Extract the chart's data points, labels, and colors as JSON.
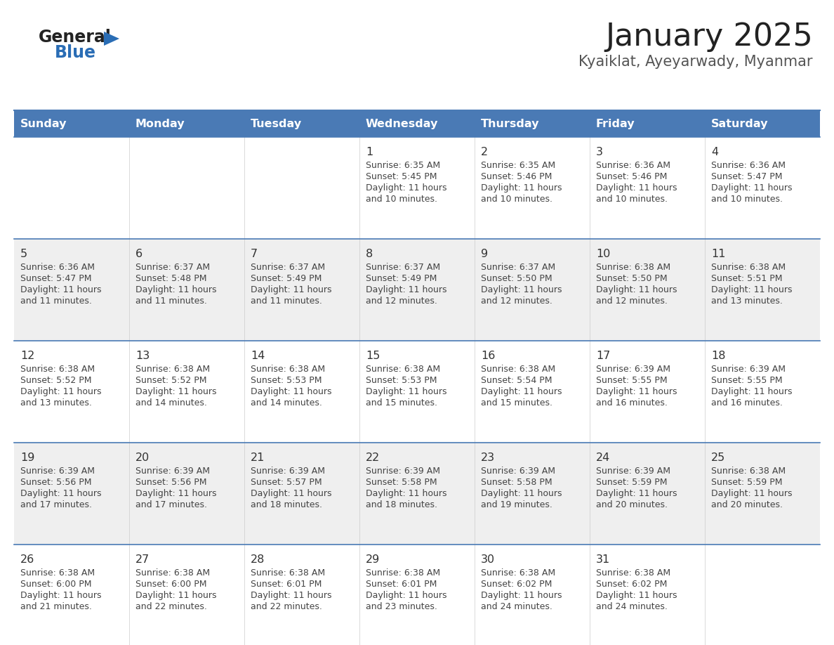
{
  "title": "January 2025",
  "subtitle": "Kyaiklat, Ayeyarwady, Myanmar",
  "days_of_week": [
    "Sunday",
    "Monday",
    "Tuesday",
    "Wednesday",
    "Thursday",
    "Friday",
    "Saturday"
  ],
  "header_bg": "#4a7ab5",
  "header_text": "#ffffff",
  "row_bg_white": "#ffffff",
  "row_bg_gray": "#efefef",
  "border_color": "#4a7ab5",
  "day_number_color": "#333333",
  "text_color": "#444444",
  "title_color": "#222222",
  "subtitle_color": "#555555",
  "logo_general_color": "#222222",
  "logo_blue_color": "#2a6db5",
  "calendar": [
    [
      null,
      null,
      null,
      {
        "day": 1,
        "sunrise": "6:35 AM",
        "sunset": "5:45 PM",
        "dl1": "Daylight: 11 hours",
        "dl2": "and 10 minutes."
      },
      {
        "day": 2,
        "sunrise": "6:35 AM",
        "sunset": "5:46 PM",
        "dl1": "Daylight: 11 hours",
        "dl2": "and 10 minutes."
      },
      {
        "day": 3,
        "sunrise": "6:36 AM",
        "sunset": "5:46 PM",
        "dl1": "Daylight: 11 hours",
        "dl2": "and 10 minutes."
      },
      {
        "day": 4,
        "sunrise": "6:36 AM",
        "sunset": "5:47 PM",
        "dl1": "Daylight: 11 hours",
        "dl2": "and 10 minutes."
      }
    ],
    [
      {
        "day": 5,
        "sunrise": "6:36 AM",
        "sunset": "5:47 PM",
        "dl1": "Daylight: 11 hours",
        "dl2": "and 11 minutes."
      },
      {
        "day": 6,
        "sunrise": "6:37 AM",
        "sunset": "5:48 PM",
        "dl1": "Daylight: 11 hours",
        "dl2": "and 11 minutes."
      },
      {
        "day": 7,
        "sunrise": "6:37 AM",
        "sunset": "5:49 PM",
        "dl1": "Daylight: 11 hours",
        "dl2": "and 11 minutes."
      },
      {
        "day": 8,
        "sunrise": "6:37 AM",
        "sunset": "5:49 PM",
        "dl1": "Daylight: 11 hours",
        "dl2": "and 12 minutes."
      },
      {
        "day": 9,
        "sunrise": "6:37 AM",
        "sunset": "5:50 PM",
        "dl1": "Daylight: 11 hours",
        "dl2": "and 12 minutes."
      },
      {
        "day": 10,
        "sunrise": "6:38 AM",
        "sunset": "5:50 PM",
        "dl1": "Daylight: 11 hours",
        "dl2": "and 12 minutes."
      },
      {
        "day": 11,
        "sunrise": "6:38 AM",
        "sunset": "5:51 PM",
        "dl1": "Daylight: 11 hours",
        "dl2": "and 13 minutes."
      }
    ],
    [
      {
        "day": 12,
        "sunrise": "6:38 AM",
        "sunset": "5:52 PM",
        "dl1": "Daylight: 11 hours",
        "dl2": "and 13 minutes."
      },
      {
        "day": 13,
        "sunrise": "6:38 AM",
        "sunset": "5:52 PM",
        "dl1": "Daylight: 11 hours",
        "dl2": "and 14 minutes."
      },
      {
        "day": 14,
        "sunrise": "6:38 AM",
        "sunset": "5:53 PM",
        "dl1": "Daylight: 11 hours",
        "dl2": "and 14 minutes."
      },
      {
        "day": 15,
        "sunrise": "6:38 AM",
        "sunset": "5:53 PM",
        "dl1": "Daylight: 11 hours",
        "dl2": "and 15 minutes."
      },
      {
        "day": 16,
        "sunrise": "6:38 AM",
        "sunset": "5:54 PM",
        "dl1": "Daylight: 11 hours",
        "dl2": "and 15 minutes."
      },
      {
        "day": 17,
        "sunrise": "6:39 AM",
        "sunset": "5:55 PM",
        "dl1": "Daylight: 11 hours",
        "dl2": "and 16 minutes."
      },
      {
        "day": 18,
        "sunrise": "6:39 AM",
        "sunset": "5:55 PM",
        "dl1": "Daylight: 11 hours",
        "dl2": "and 16 minutes."
      }
    ],
    [
      {
        "day": 19,
        "sunrise": "6:39 AM",
        "sunset": "5:56 PM",
        "dl1": "Daylight: 11 hours",
        "dl2": "and 17 minutes."
      },
      {
        "day": 20,
        "sunrise": "6:39 AM",
        "sunset": "5:56 PM",
        "dl1": "Daylight: 11 hours",
        "dl2": "and 17 minutes."
      },
      {
        "day": 21,
        "sunrise": "6:39 AM",
        "sunset": "5:57 PM",
        "dl1": "Daylight: 11 hours",
        "dl2": "and 18 minutes."
      },
      {
        "day": 22,
        "sunrise": "6:39 AM",
        "sunset": "5:58 PM",
        "dl1": "Daylight: 11 hours",
        "dl2": "and 18 minutes."
      },
      {
        "day": 23,
        "sunrise": "6:39 AM",
        "sunset": "5:58 PM",
        "dl1": "Daylight: 11 hours",
        "dl2": "and 19 minutes."
      },
      {
        "day": 24,
        "sunrise": "6:39 AM",
        "sunset": "5:59 PM",
        "dl1": "Daylight: 11 hours",
        "dl2": "and 20 minutes."
      },
      {
        "day": 25,
        "sunrise": "6:38 AM",
        "sunset": "5:59 PM",
        "dl1": "Daylight: 11 hours",
        "dl2": "and 20 minutes."
      }
    ],
    [
      {
        "day": 26,
        "sunrise": "6:38 AM",
        "sunset": "6:00 PM",
        "dl1": "Daylight: 11 hours",
        "dl2": "and 21 minutes."
      },
      {
        "day": 27,
        "sunrise": "6:38 AM",
        "sunset": "6:00 PM",
        "dl1": "Daylight: 11 hours",
        "dl2": "and 22 minutes."
      },
      {
        "day": 28,
        "sunrise": "6:38 AM",
        "sunset": "6:01 PM",
        "dl1": "Daylight: 11 hours",
        "dl2": "and 22 minutes."
      },
      {
        "day": 29,
        "sunrise": "6:38 AM",
        "sunset": "6:01 PM",
        "dl1": "Daylight: 11 hours",
        "dl2": "and 23 minutes."
      },
      {
        "day": 30,
        "sunrise": "6:38 AM",
        "sunset": "6:02 PM",
        "dl1": "Daylight: 11 hours",
        "dl2": "and 24 minutes."
      },
      {
        "day": 31,
        "sunrise": "6:38 AM",
        "sunset": "6:02 PM",
        "dl1": "Daylight: 11 hours",
        "dl2": "and 24 minutes."
      },
      null
    ]
  ]
}
